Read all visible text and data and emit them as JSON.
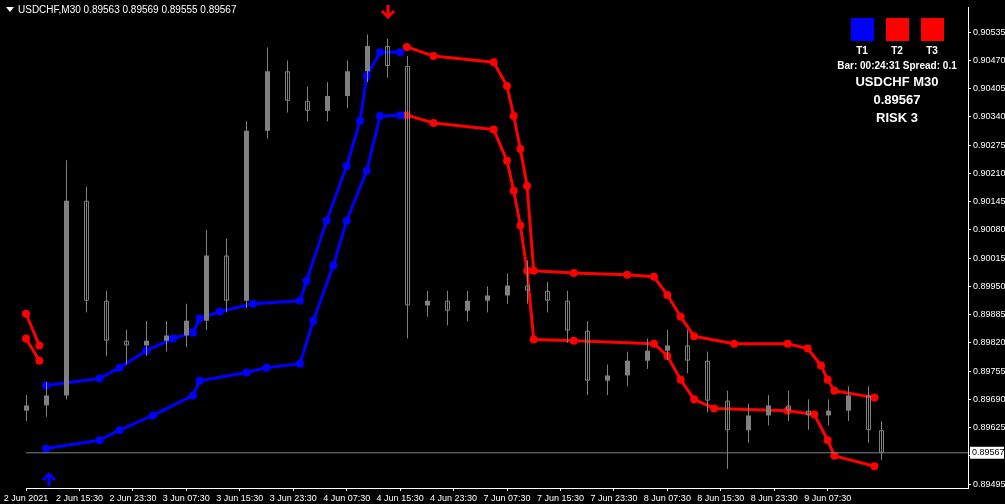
{
  "chart_data": {
    "type": "candlestick",
    "title": "USDCHF,M30 0.89563 0.89569 0.89555 0.89567",
    "annotations": [
      "T1",
      "T2",
      "T3",
      "Bar: 00:24:31 Spread: 0.1",
      "USDCHF M30",
      "0.89567",
      "RISK 3"
    ],
    "categories": [
      "2 Jun 2021",
      null,
      null,
      null,
      null,
      null,
      null,
      null,
      "2 Jun 15:30",
      null,
      null,
      null,
      null,
      null,
      null,
      null,
      "2 Jun 23:30",
      null,
      null,
      null,
      null,
      null,
      null,
      null,
      "3 Jun 07:30",
      null,
      null,
      null,
      null,
      null,
      null,
      null,
      "3 Jun 15:30",
      null,
      null,
      null,
      null,
      null,
      null,
      null,
      "3 Jun 23:30",
      null,
      null,
      null,
      null,
      null,
      null,
      null,
      "4 Jun 07:30",
      null,
      null,
      null,
      null,
      null,
      null,
      null,
      "4 Jun 15:30",
      null,
      null,
      null,
      null,
      null,
      null,
      null,
      "4 Jun 23:30",
      null,
      null,
      null,
      null,
      null,
      null,
      null,
      "7 Jun 07:30",
      null,
      null,
      null,
      null,
      null,
      null,
      null,
      "7 Jun 15:30",
      null,
      null,
      null,
      null,
      null,
      null,
      null,
      "7 Jun 23:30",
      null,
      null,
      null,
      null,
      null,
      null,
      null,
      "8 Jun 07:30",
      null,
      null,
      null,
      null,
      null,
      null,
      null,
      "8 Jun 15:30",
      null,
      null,
      null,
      null,
      null,
      null,
      null,
      "8 Jun 23:30",
      null,
      null,
      null,
      null,
      null,
      null,
      null,
      "9 Jun 07:30",
      null,
      null,
      null,
      null,
      null,
      null,
      null,
      null,
      null,
      null,
      null,
      null,
      null,
      null,
      null,
      null,
      null,
      null,
      null,
      null,
      null
    ],
    "ylim": [
      0.89486,
      0.90592
    ],
    "yticks": [
      {
        "value": 0.89495,
        "label": "0.89495"
      },
      {
        "value": 0.8956,
        "label": null
      },
      {
        "value": 0.89625,
        "label": "0.89625"
      },
      {
        "value": 0.8969,
        "label": "0.89690"
      },
      {
        "value": 0.89755,
        "label": "0.89755"
      },
      {
        "value": 0.8982,
        "label": "0.89820"
      },
      {
        "value": 0.89885,
        "label": "0.89885"
      },
      {
        "value": 0.8995,
        "label": "0.89950"
      },
      {
        "value": 0.90015,
        "label": "0.90015"
      },
      {
        "value": 0.9008,
        "label": "0.90080"
      },
      {
        "value": 0.90145,
        "label": "0.90145"
      },
      {
        "value": 0.9021,
        "label": "0.90210"
      },
      {
        "value": 0.90275,
        "label": "0.90275"
      },
      {
        "value": 0.9034,
        "label": "0.90340"
      },
      {
        "value": 0.90405,
        "label": "0.90405"
      },
      {
        "value": 0.9047,
        "label": "0.90470"
      },
      {
        "value": 0.90535,
        "label": "0.90535"
      }
    ],
    "ref_lines": [
      {
        "axis": "y",
        "value": 0.89567,
        "label": "0.89567",
        "color": "#808080"
      }
    ],
    "series": [
      {
        "type": "line",
        "color": "#ff0000",
        "marker": "circle",
        "values": [
          0.89887,
          null,
          0.89814,
          null,
          null,
          null,
          null,
          null,
          null,
          null,
          null,
          null,
          null,
          null,
          null,
          null,
          null,
          null,
          null,
          null,
          null,
          null,
          null,
          null,
          null,
          null,
          null,
          null,
          null,
          null,
          null,
          null,
          null,
          null,
          null,
          null,
          null,
          null,
          null,
          null,
          null,
          null,
          null,
          null,
          null,
          null,
          null,
          null,
          null,
          null,
          null,
          null,
          null,
          null,
          null,
          null,
          null,
          null,
          null,
          null,
          null,
          null,
          null,
          null,
          null,
          null,
          null,
          null,
          null,
          null,
          null,
          null,
          null,
          null,
          null,
          null,
          null,
          null,
          null,
          null,
          null,
          null,
          null,
          null,
          null,
          null,
          null,
          null,
          null,
          null,
          null,
          null,
          null,
          null,
          null,
          null,
          null,
          null,
          null,
          null,
          null,
          null,
          null,
          null,
          null,
          null,
          null,
          null,
          null,
          null,
          null,
          null,
          null,
          null,
          null,
          null,
          null,
          null,
          null,
          null,
          null,
          null,
          null,
          null,
          null,
          null,
          null,
          null,
          null,
          null,
          null,
          null,
          null,
          null,
          null,
          null,
          null,
          null,
          null,
          null,
          null,
          null
        ]
      },
      {
        "type": "line",
        "color": "#ff0000",
        "marker": "circle",
        "values": [
          0.8983,
          null,
          0.89779,
          null,
          null,
          null,
          null,
          null,
          null,
          null,
          null,
          null,
          null,
          null,
          null,
          null,
          null,
          null,
          null,
          null,
          null,
          null,
          null,
          null,
          null,
          null,
          null,
          null,
          null,
          null,
          null,
          null,
          null,
          null,
          null,
          null,
          null,
          null,
          null,
          null,
          null,
          null,
          null,
          null,
          null,
          null,
          null,
          null,
          null,
          null,
          null,
          null,
          null,
          null,
          null,
          null,
          null,
          null,
          null,
          null,
          null,
          null,
          null,
          null,
          null,
          null,
          null,
          null,
          null,
          null,
          null,
          null,
          null,
          null,
          null,
          null,
          null,
          null,
          null,
          null,
          null,
          null,
          null,
          null,
          null,
          null,
          null,
          null,
          null,
          null,
          null,
          null,
          null,
          null,
          null,
          null,
          null,
          null,
          null,
          null,
          null,
          null,
          null,
          null,
          null,
          null,
          null,
          null,
          null,
          null,
          null,
          null,
          null,
          null,
          null,
          null,
          null,
          null,
          null,
          null,
          null,
          null,
          null,
          null,
          null,
          null,
          null,
          null,
          null,
          null,
          null,
          null,
          null,
          null,
          null,
          null,
          null,
          null,
          null,
          null,
          null,
          null
        ]
      },
      {
        "type": "line",
        "color": "#0000ff",
        "marker": "circle",
        "values": [
          null,
          null,
          null,
          0.89722,
          null,
          null,
          null,
          null,
          null,
          null,
          null,
          0.89738,
          null,
          null,
          0.89763,
          null,
          null,
          null,
          0.89802,
          null,
          null,
          null,
          0.8983,
          null,
          null,
          0.89844,
          0.89876,
          null,
          null,
          0.89892,
          null,
          null,
          null,
          null,
          0.8991,
          null,
          null,
          null,
          null,
          null,
          null,
          0.89917,
          0.89963,
          null,
          null,
          0.90101,
          null,
          null,
          0.90227,
          null,
          0.90331,
          0.90434,
          null,
          0.90489,
          null,
          null,
          0.90489,
          null,
          null,
          null,
          null,
          null,
          null,
          null,
          null,
          null,
          null,
          null,
          null,
          null,
          null,
          null,
          null,
          null,
          null,
          null,
          null,
          null,
          null,
          null,
          null,
          null,
          null,
          null,
          null,
          null,
          null,
          null,
          null,
          null,
          null,
          null,
          null,
          null,
          null,
          null,
          null,
          null,
          null,
          null,
          null,
          null,
          null,
          null,
          null,
          null,
          null,
          null,
          null,
          null,
          null,
          null,
          null,
          null,
          null,
          null,
          null,
          null,
          null,
          null,
          null,
          null,
          null,
          null,
          null,
          null,
          null,
          null,
          null,
          null,
          null,
          null,
          null,
          null,
          null,
          null,
          null,
          null,
          null,
          null,
          null,
          null
        ]
      },
      {
        "type": "line",
        "color": "#0000ff",
        "marker": "circle",
        "values": [
          null,
          null,
          null,
          0.89577,
          null,
          null,
          null,
          null,
          null,
          null,
          null,
          0.89596,
          null,
          null,
          0.89619,
          null,
          null,
          null,
          null,
          0.89653,
          null,
          null,
          null,
          null,
          null,
          0.89699,
          0.89733,
          null,
          null,
          null,
          null,
          null,
          null,
          0.89752,
          null,
          null,
          0.89763,
          null,
          null,
          null,
          null,
          0.89772,
          null,
          0.89871,
          null,
          null,
          0.89998,
          null,
          0.90101,
          null,
          null,
          0.90216,
          null,
          0.90342,
          null,
          null,
          0.90344,
          null,
          null,
          null,
          null,
          null,
          null,
          null,
          null,
          null,
          null,
          null,
          null,
          null,
          null,
          null,
          null,
          null,
          null,
          null,
          null,
          null,
          null,
          null,
          null,
          null,
          null,
          null,
          null,
          null,
          null,
          null,
          null,
          null,
          null,
          null,
          null,
          null,
          null,
          null,
          null,
          null,
          null,
          null,
          null,
          null,
          null,
          null,
          null,
          null,
          null,
          null,
          null,
          null,
          null,
          null,
          null,
          null,
          null,
          null,
          null,
          null,
          null,
          null,
          null,
          null,
          null,
          null,
          null,
          null,
          null,
          null,
          null,
          null,
          null,
          null,
          null,
          null,
          null,
          null,
          null,
          null,
          null,
          null,
          null,
          null
        ]
      },
      {
        "type": "line",
        "color": "#ff0000",
        "marker": "circle",
        "values": [
          null,
          null,
          null,
          null,
          null,
          null,
          null,
          null,
          null,
          null,
          null,
          null,
          null,
          null,
          null,
          null,
          null,
          null,
          null,
          null,
          null,
          null,
          null,
          null,
          null,
          null,
          null,
          null,
          null,
          null,
          null,
          null,
          null,
          null,
          null,
          null,
          null,
          null,
          null,
          null,
          null,
          null,
          null,
          null,
          null,
          null,
          null,
          null,
          null,
          null,
          null,
          null,
          null,
          null,
          null,
          null,
          null,
          0.90501,
          null,
          null,
          null,
          0.9048,
          null,
          null,
          null,
          null,
          null,
          null,
          null,
          null,
          0.90466,
          null,
          0.90411,
          0.90342,
          0.90266,
          0.90181,
          0.89986,
          null,
          null,
          null,
          null,
          null,
          0.89981,
          null,
          null,
          null,
          null,
          null,
          null,
          null,
          0.89977,
          null,
          null,
          null,
          0.89972,
          null,
          0.8993,
          null,
          0.8988,
          null,
          0.89835,
          null,
          null,
          null,
          null,
          null,
          0.89818,
          null,
          null,
          null,
          null,
          null,
          null,
          null,
          0.89818,
          null,
          null,
          0.89807,
          null,
          0.89768,
          0.89735,
          0.8971,
          null,
          null,
          null,
          null,
          null,
          0.89694,
          null,
          null,
          null,
          null,
          null,
          null,
          null,
          null,
          null,
          null,
          null,
          null,
          null,
          null
        ]
      },
      {
        "type": "line",
        "color": "#ff0000",
        "marker": "circle",
        "values": [
          null,
          null,
          null,
          null,
          null,
          null,
          null,
          null,
          null,
          null,
          null,
          null,
          null,
          null,
          null,
          null,
          null,
          null,
          null,
          null,
          null,
          null,
          null,
          null,
          null,
          null,
          null,
          null,
          null,
          null,
          null,
          null,
          null,
          null,
          null,
          null,
          null,
          null,
          null,
          null,
          null,
          null,
          null,
          null,
          null,
          null,
          null,
          null,
          null,
          null,
          null,
          null,
          null,
          null,
          null,
          null,
          null,
          0.90344,
          null,
          null,
          null,
          0.90326,
          null,
          null,
          null,
          null,
          null,
          null,
          null,
          null,
          0.90311,
          null,
          0.90239,
          0.9017,
          0.9009,
          0.89986,
          0.89828,
          null,
          null,
          null,
          null,
          null,
          0.89825,
          null,
          null,
          null,
          null,
          null,
          null,
          null,
          null,
          null,
          null,
          null,
          0.89818,
          null,
          0.8979,
          null,
          0.89735,
          null,
          0.8969,
          null,
          null,
          0.89669,
          null,
          null,
          null,
          null,
          null,
          null,
          null,
          null,
          null,
          null,
          0.89664,
          null,
          null,
          null,
          0.89655,
          null,
          0.89596,
          0.8956,
          null,
          null,
          null,
          null,
          null,
          0.89536,
          null,
          null,
          null,
          null,
          null,
          null,
          null,
          null,
          null,
          null,
          null,
          null,
          null,
          null
        ]
      },
      {
        "color": "#808080",
        "ohlc": [
          [
            0.89664,
            0.897,
            0.8964,
            0.89676
          ],
          null,
          null,
          [
            0.89676,
            0.8973,
            0.8965,
            0.89699
          ],
          null,
          null,
          [
            0.89699,
            0.9024,
            0.8969,
            0.90147
          ],
          null,
          null,
          [
            0.90147,
            0.9018,
            0.8989,
            0.89917
          ],
          null,
          null,
          [
            0.89917,
            0.8994,
            0.8979,
            0.89825
          ],
          null,
          null,
          [
            0.89825,
            0.8985,
            0.8977,
            0.89814
          ],
          null,
          null,
          [
            0.89814,
            0.8987,
            0.8979,
            0.89825
          ],
          null,
          null,
          [
            0.89825,
            0.8987,
            0.898,
            0.89837
          ],
          null,
          null,
          [
            0.89837,
            0.8991,
            0.8981,
            0.89871
          ],
          null,
          null,
          [
            0.89871,
            0.9008,
            0.8985,
            0.90021
          ],
          null,
          null,
          [
            0.90021,
            0.9006,
            0.8989,
            0.89917
          ],
          null,
          null,
          [
            0.89917,
            0.9033,
            0.899,
            0.90308
          ],
          null,
          null,
          [
            0.90308,
            0.905,
            0.9029,
            0.90445
          ],
          null,
          null,
          [
            0.90445,
            0.9047,
            0.9035,
            0.90377
          ],
          null,
          null,
          [
            0.90377,
            0.9041,
            0.9033,
            0.90354
          ],
          null,
          null,
          [
            0.90354,
            0.9042,
            0.9033,
            0.90388
          ],
          null,
          null,
          [
            0.90388,
            0.9047,
            0.9036,
            0.90445
          ],
          null,
          null,
          [
            0.90445,
            0.9053,
            0.9042,
            0.90503
          ],
          null,
          null,
          [
            0.90503,
            0.9052,
            0.9043,
            0.90457
          ],
          null,
          null,
          [
            0.90457,
            0.9048,
            0.8983,
            0.89906
          ],
          null,
          null,
          [
            0.89906,
            0.8994,
            0.8988,
            0.89917
          ],
          null,
          null,
          [
            0.89917,
            0.8994,
            0.8986,
            0.89894
          ],
          null,
          null,
          [
            0.89894,
            0.8994,
            0.8987,
            0.89917
          ],
          null,
          null,
          [
            0.89917,
            0.8995,
            0.8989,
            0.89929
          ],
          null,
          null,
          [
            0.89929,
            0.8998,
            0.8991,
            0.89952
          ],
          null,
          null,
          [
            0.89952,
            0.9001,
            0.8991,
            0.8994
          ],
          null,
          null,
          [
            0.8994,
            0.8996,
            0.8989,
            0.89917
          ],
          null,
          null,
          [
            0.89917,
            0.8994,
            0.8982,
            0.89848
          ],
          null,
          null,
          [
            0.89848,
            0.8987,
            0.897,
            0.89733
          ],
          null,
          null,
          [
            0.89733,
            0.8977,
            0.897,
            0.89745
          ],
          null,
          null,
          [
            0.89745,
            0.898,
            0.8972,
            0.89779
          ],
          null,
          null,
          [
            0.89779,
            0.8983,
            0.8976,
            0.89802
          ],
          null,
          null,
          [
            0.89802,
            0.8985,
            0.8978,
            0.89814
          ],
          null,
          null,
          [
            0.89814,
            0.8985,
            0.8975,
            0.89779
          ],
          null,
          null,
          [
            0.89779,
            0.898,
            0.8966,
            0.89687
          ],
          null,
          null,
          [
            0.89687,
            0.8971,
            0.8953,
            0.89619
          ],
          null,
          null,
          [
            0.89619,
            0.8968,
            0.8959,
            0.89653
          ],
          null,
          null,
          [
            0.89653,
            0.897,
            0.8963,
            0.89676
          ],
          null,
          null,
          [
            0.89676,
            0.8971,
            0.8964,
            0.89664
          ],
          null,
          null,
          [
            0.89664,
            0.8969,
            0.8962,
            0.89653
          ],
          null,
          null,
          [
            0.89653,
            0.8969,
            0.8963,
            0.89664
          ],
          null,
          null,
          [
            0.89664,
            0.8972,
            0.8964,
            0.89699
          ],
          null,
          null,
          [
            0.89699,
            0.8972,
            0.8959,
            0.89619
          ],
          null,
          [
            0.89619,
            0.8964,
            0.8955,
            0.89567
          ],
          null,
          null,
          null,
          null,
          null,
          null,
          null,
          null,
          null,
          null,
          null,
          null,
          null
        ]
      }
    ]
  }
}
